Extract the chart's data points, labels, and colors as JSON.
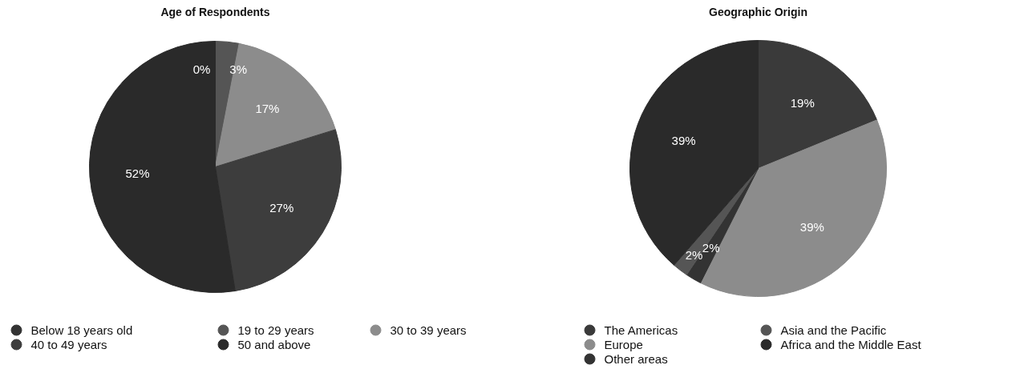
{
  "chart_data": [
    {
      "type": "pie",
      "title": "Age of Respondents",
      "categories": [
        "Below 18 years old",
        "19 to 29 years",
        "30 to 39 years",
        "40 to 49 years",
        "50 and above"
      ],
      "values": [
        0,
        3,
        17,
        27,
        52
      ],
      "value_labels": [
        "0%",
        "3%",
        "17%",
        "27%",
        "52%"
      ],
      "colors": [
        "#333333",
        "#555555",
        "#8c8c8c",
        "#3d3d3d",
        "#2a2a2a"
      ],
      "legend": "bottom"
    },
    {
      "type": "pie",
      "title": "Geographic Origin",
      "categories": [
        "The Americas",
        "Europe",
        "Other areas",
        "Asia and the Pacific",
        "Africa and the Middle East"
      ],
      "values": [
        19,
        39,
        2,
        2,
        39
      ],
      "value_labels": [
        "19%",
        "39%",
        "2%",
        "2%",
        "39%"
      ],
      "colors": [
        "#3a3a3a",
        "#8c8c8c",
        "#333333",
        "#555555",
        "#2a2a2a"
      ],
      "legend": "bottom"
    }
  ]
}
